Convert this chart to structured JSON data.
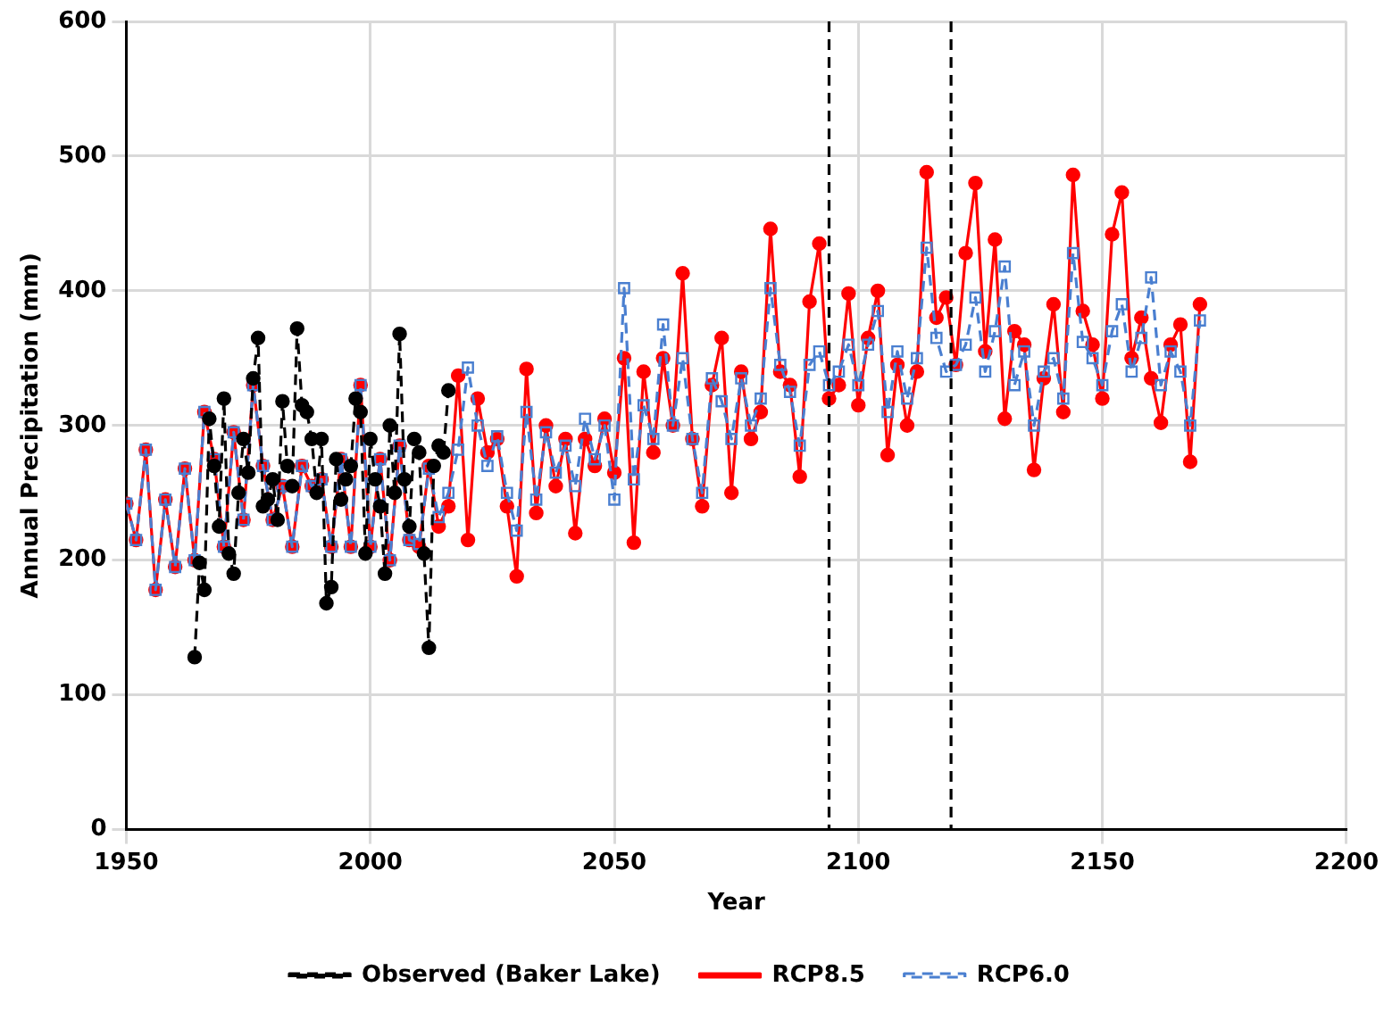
{
  "chart_data": {
    "type": "line",
    "xlabel": "Year",
    "ylabel": "Annual Precipitation (mm)",
    "xlim": [
      1950,
      2200
    ],
    "xticks": [
      1950,
      2000,
      2050,
      2100,
      2150,
      2200
    ],
    "ylim": [
      0,
      600
    ],
    "yticks": [
      0,
      100,
      200,
      300,
      400,
      500,
      600
    ],
    "grid": true,
    "legend": "bottom",
    "x": [
      1950,
      1952,
      1954,
      1956,
      1958,
      1960,
      1962,
      1964,
      1966,
      1968,
      1970,
      1972,
      1974,
      1976,
      1978,
      1980,
      1982,
      1984,
      1986,
      1988,
      1990,
      1992,
      1994,
      1996,
      1998,
      2000,
      2002,
      2004,
      2006,
      2008,
      2010,
      2012,
      2014,
      2016,
      2018,
      2020,
      2022,
      2024,
      2026,
      2028,
      2030,
      2032,
      2034,
      2036,
      2038,
      2040,
      2042,
      2044,
      2046,
      2048,
      2050,
      2052,
      2054,
      2056,
      2058,
      2060,
      2062,
      2064,
      2066,
      2068,
      2070,
      2072,
      2074,
      2076,
      2078,
      2080,
      2082,
      2084,
      2086,
      2088,
      2090,
      2092,
      2094,
      2096,
      2098,
      2100,
      2102,
      2104,
      2106,
      2108,
      2110,
      2112,
      2114,
      2116,
      2118,
      2120,
      2122,
      2124,
      2126,
      2128,
      2130,
      2132,
      2134,
      2136,
      2138,
      2140,
      2142,
      2144,
      2146,
      2148,
      2150,
      2152,
      2154,
      2156,
      2158,
      2160,
      2162,
      2164,
      2166,
      2168,
      2170
    ],
    "ref_lines": [
      {
        "axis": "x",
        "value": 2094,
        "color": "#000000",
        "line_style": "dashed"
      },
      {
        "axis": "x",
        "value": 2119,
        "color": "#000000",
        "line_style": "dashed"
      }
    ],
    "series": [
      {
        "name": "Observed (Baker Lake)",
        "color": "#000000",
        "marker": "circle",
        "line_style": "dashed",
        "x": [
          1964,
          1965,
          1966,
          1967,
          1968,
          1969,
          1970,
          1971,
          1972,
          1973,
          1974,
          1975,
          1976,
          1977,
          1978,
          1979,
          1980,
          1981,
          1982,
          1983,
          1984,
          1985,
          1986,
          1987,
          1988,
          1989,
          1990,
          1991,
          1992,
          1993,
          1994,
          1995,
          1996,
          1997,
          1998,
          1999,
          2000,
          2001,
          2002,
          2003,
          2004,
          2005,
          2006,
          2007,
          2008,
          2009,
          2010,
          2011,
          2012,
          2013,
          2014,
          2015,
          2016
        ],
        "values": [
          128,
          198,
          178,
          305,
          270,
          225,
          320,
          205,
          190,
          250,
          290,
          265,
          335,
          365,
          240,
          245,
          260,
          230,
          318,
          270,
          255,
          372,
          315,
          310,
          290,
          250,
          290,
          168,
          180,
          275,
          245,
          260,
          270,
          320,
          310,
          205,
          290,
          260,
          240,
          190,
          300,
          250,
          368,
          260,
          225,
          290,
          280,
          205,
          135,
          270,
          285,
          280,
          326
        ]
      },
      {
        "name": "RCP8.5",
        "color": "#ff0000",
        "marker": "circle",
        "line_style": "solid",
        "values": [
          242,
          215,
          282,
          178,
          245,
          195,
          268,
          200,
          310,
          275,
          210,
          295,
          230,
          330,
          270,
          230,
          255,
          210,
          270,
          255,
          260,
          210,
          275,
          210,
          330,
          210,
          275,
          200,
          285,
          215,
          210,
          270,
          225,
          240,
          337,
          215,
          320,
          280,
          290,
          240,
          188,
          342,
          235,
          300,
          255,
          290,
          220,
          290,
          270,
          305,
          265,
          350,
          213,
          340,
          280,
          350,
          300,
          413,
          290,
          240,
          330,
          365,
          250,
          340,
          290,
          310,
          446,
          340,
          330,
          262,
          392,
          435,
          320,
          330,
          398,
          315,
          365,
          400,
          278,
          345,
          300,
          340,
          488,
          380,
          395,
          345,
          428,
          480,
          355,
          438,
          305,
          370,
          360,
          267,
          335,
          390,
          310,
          486,
          385,
          360,
          320,
          442,
          473,
          350,
          380,
          335,
          302,
          360,
          375,
          273,
          390
        ]
      },
      {
        "name": "RCP6.0",
        "color": "#4a7fd0",
        "marker": "square",
        "line_style": "dashed",
        "values": [
          242,
          215,
          282,
          178,
          245,
          195,
          268,
          200,
          310,
          275,
          210,
          295,
          230,
          330,
          270,
          230,
          255,
          210,
          270,
          255,
          260,
          210,
          275,
          210,
          330,
          210,
          275,
          200,
          285,
          215,
          212,
          268,
          232,
          250,
          282,
          343,
          300,
          270,
          292,
          250,
          222,
          310,
          245,
          295,
          265,
          285,
          255,
          305,
          275,
          300,
          245,
          402,
          260,
          315,
          290,
          375,
          300,
          350,
          290,
          250,
          335,
          318,
          290,
          335,
          300,
          320,
          402,
          345,
          325,
          285,
          345,
          355,
          330,
          340,
          360,
          330,
          360,
          385,
          310,
          355,
          320,
          350,
          432,
          365,
          340,
          345,
          360,
          395,
          340,
          370,
          418,
          330,
          355,
          300,
          340,
          350,
          320,
          428,
          362,
          350,
          330,
          370,
          390,
          340,
          365,
          410,
          330,
          355,
          340,
          300,
          378
        ]
      }
    ]
  }
}
